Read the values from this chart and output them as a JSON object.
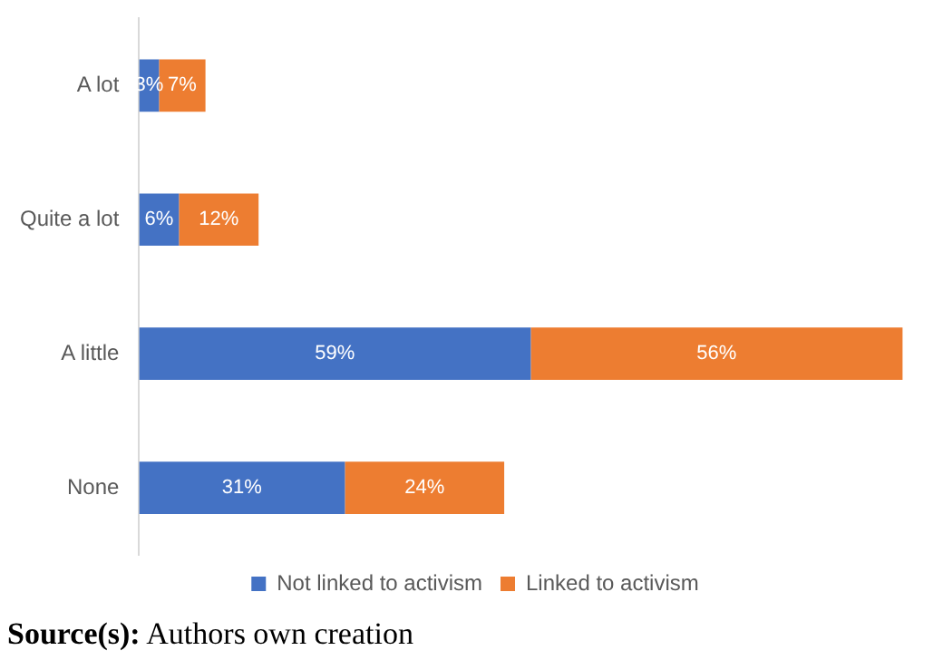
{
  "chart_data": {
    "type": "bar",
    "orientation": "horizontal",
    "stacked": true,
    "categories": [
      "A lot",
      "Quite a lot",
      "A little",
      "None"
    ],
    "series": [
      {
        "name": "Not linked to activism",
        "color": "#4472c4",
        "values": [
          3,
          6,
          59,
          31
        ],
        "value_labels": [
          "3%",
          "6%",
          "59%",
          "31%"
        ]
      },
      {
        "name": "Linked to activism",
        "color": "#ed7d31",
        "values": [
          7,
          12,
          56,
          24
        ],
        "value_labels": [
          "7%",
          "12%",
          "56%",
          "24%"
        ]
      }
    ],
    "legend": "bottom",
    "tick_labels": "y",
    "annotations": [
      "Source(s): Authors own creation"
    ]
  }
}
